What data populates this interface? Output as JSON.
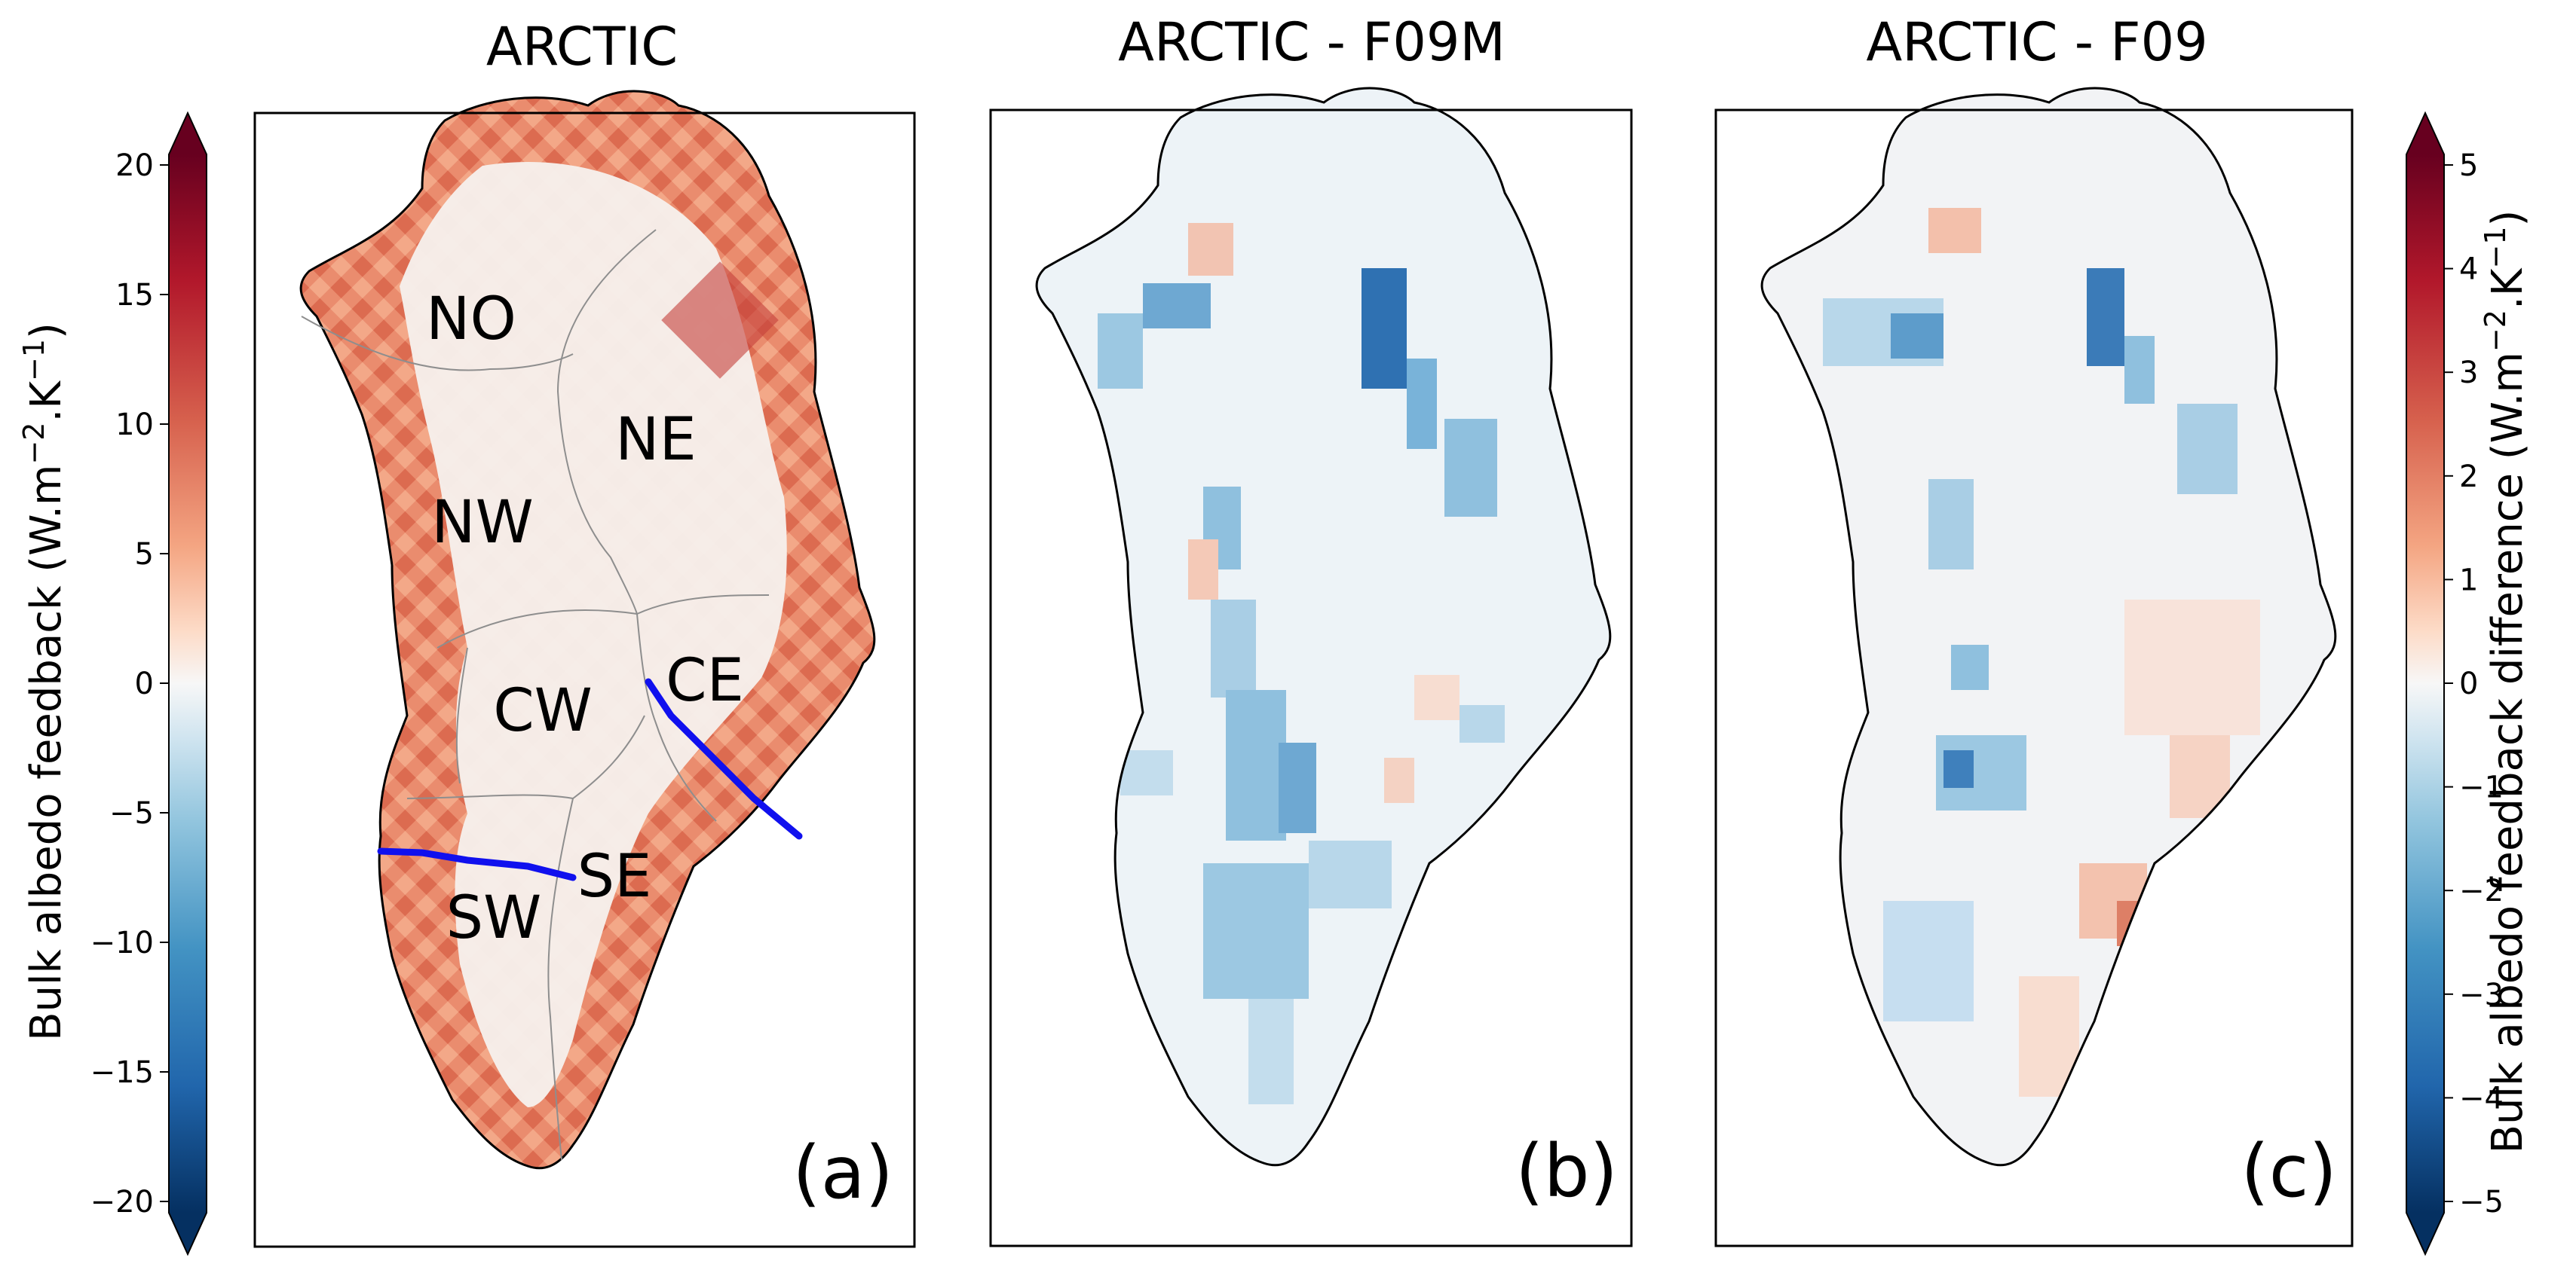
{
  "panels": [
    {
      "title": "ARCTIC",
      "tag": "(a)",
      "kind": "absolute"
    },
    {
      "title": "ARCTIC - F09M",
      "tag": "(b)",
      "kind": "difference"
    },
    {
      "title": "ARCTIC - F09",
      "tag": "(c)",
      "kind": "difference"
    }
  ],
  "regions": [
    {
      "label": "NO"
    },
    {
      "label": "NE"
    },
    {
      "label": "NW"
    },
    {
      "label": "CW"
    },
    {
      "label": "CE"
    },
    {
      "label": "SW"
    },
    {
      "label": "SE"
    }
  ],
  "left_colorbar": {
    "label_main": "Bulk albedo feedback (W.m",
    "label_exp1": "−2",
    "label_mid": ".K",
    "label_exp2": "−1",
    "label_end": ")",
    "ticks": [
      "20",
      "15",
      "10",
      "5",
      "0",
      "−5",
      "−10",
      "−15",
      "−20"
    ],
    "min": -20,
    "max": 20,
    "cmap": "RdBu_r"
  },
  "right_colorbar": {
    "label_main": "Bulk albedo feedback difference (W.m",
    "label_exp1": "−2",
    "label_mid": ".K",
    "label_exp2": "−1",
    "label_end": ")",
    "ticks": [
      "5",
      "4",
      "3",
      "2",
      "1",
      "0",
      "−1",
      "−2",
      "−3",
      "−4",
      "−5"
    ],
    "min": -5,
    "max": 5,
    "cmap": "RdBu_r"
  },
  "colors": {
    "transect": "#1010ee",
    "coast": "#000000",
    "basin_lines": "#999999",
    "dark_red": "#67001f",
    "red": "#d6604d",
    "light_red": "#f4a582",
    "neutral": "#f7f7f7",
    "light_blue": "#92c5de",
    "blue": "#4393c3",
    "dark_blue": "#053061"
  }
}
